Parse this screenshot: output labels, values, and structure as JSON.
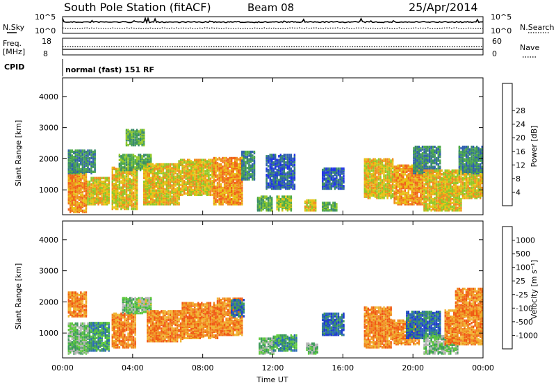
{
  "header": {
    "station": "South Pole Station (fitACF)",
    "beam": "Beam 08",
    "date": "25/Apr/2014"
  },
  "noise_panel": {
    "left_label": "N.Sky",
    "right_label": "N.Search",
    "left_ticks": [
      "10^5",
      "10^0"
    ],
    "right_ticks": [
      "10^5",
      "10^0"
    ]
  },
  "freq_panel": {
    "left_label_1": "Freq.",
    "left_label_2": "[MHz]",
    "right_label": "Nave",
    "left_ticks": [
      "18",
      "8"
    ],
    "right_ticks": [
      "60",
      "0"
    ]
  },
  "cpid": {
    "label": "CPID",
    "program": "normal (fast) 151 RF"
  },
  "colors": {
    "power": [
      "#1e32e6",
      "#2e5eb0",
      "#3a8a6a",
      "#4caa48",
      "#90c828",
      "#e8c214",
      "#f08c1e",
      "#f06418",
      "#e82214"
    ],
    "velocity": [
      "#e81e1e",
      "#f05a14",
      "#f08a1e",
      "#f0b432",
      "#b4b4b4",
      "#5cc83c",
      "#3c9a5a",
      "#2a6ab4",
      "#1e3ccc"
    ]
  },
  "chart_data": [
    {
      "type": "heatmap",
      "panel": "power",
      "ylabel": "Slant Range [km]",
      "ylim": [
        200,
        4600
      ],
      "yticks": [
        1000,
        2000,
        3000,
        4000
      ],
      "xlim": [
        0,
        24
      ],
      "colorbar_label": "Power [dB]",
      "colorbar_ticks": [
        "4",
        "8",
        "12",
        "16",
        "20",
        "24",
        "28"
      ],
      "colorbar_range": [
        0,
        32
      ],
      "blobs": [
        {
          "t0": 0.3,
          "t1": 1.4,
          "r0": 250,
          "r1": 1600,
          "value": 26
        },
        {
          "t0": 0.3,
          "t1": 1.9,
          "r0": 1500,
          "r1": 2250,
          "value": 12
        },
        {
          "t0": 1.4,
          "t1": 2.7,
          "r0": 500,
          "r1": 1350,
          "value": 22
        },
        {
          "t0": 2.8,
          "t1": 4.3,
          "r0": 350,
          "r1": 1700,
          "value": 25
        },
        {
          "t0": 3.2,
          "t1": 5.0,
          "r0": 1600,
          "r1": 2100,
          "value": 14
        },
        {
          "t0": 3.6,
          "t1": 4.6,
          "r0": 2400,
          "r1": 2900,
          "value": 16
        },
        {
          "t0": 4.6,
          "t1": 6.6,
          "r0": 500,
          "r1": 1800,
          "value": 24
        },
        {
          "t0": 6.6,
          "t1": 8.6,
          "r0": 800,
          "r1": 1950,
          "value": 23
        },
        {
          "t0": 8.6,
          "t1": 10.2,
          "r0": 500,
          "r1": 2000,
          "value": 26
        },
        {
          "t0": 10.2,
          "t1": 10.9,
          "r0": 1300,
          "r1": 2200,
          "value": 12
        },
        {
          "t0": 11.1,
          "t1": 11.9,
          "r0": 300,
          "r1": 750,
          "value": 17
        },
        {
          "t0": 11.6,
          "t1": 13.2,
          "r0": 1000,
          "r1": 2100,
          "value": 8
        },
        {
          "t0": 12.2,
          "t1": 13.0,
          "r0": 300,
          "r1": 750,
          "value": 18
        },
        {
          "t0": 13.8,
          "t1": 14.4,
          "r0": 300,
          "r1": 650,
          "value": 25
        },
        {
          "t0": 14.8,
          "t1": 16.0,
          "r0": 1000,
          "r1": 1650,
          "value": 9
        },
        {
          "t0": 14.8,
          "t1": 15.6,
          "r0": 300,
          "r1": 550,
          "value": 14
        },
        {
          "t0": 17.2,
          "t1": 18.9,
          "r0": 700,
          "r1": 1950,
          "value": 25
        },
        {
          "t0": 18.9,
          "t1": 20.6,
          "r0": 500,
          "r1": 1750,
          "value": 26
        },
        {
          "t0": 20.0,
          "t1": 21.6,
          "r0": 1500,
          "r1": 2350,
          "value": 13
        },
        {
          "t0": 20.6,
          "t1": 22.8,
          "r0": 300,
          "r1": 1600,
          "value": 25
        },
        {
          "t0": 22.8,
          "t1": 24.0,
          "r0": 700,
          "r1": 1650,
          "value": 22
        },
        {
          "t0": 22.6,
          "t1": 24.0,
          "r0": 1500,
          "r1": 2350,
          "value": 10
        }
      ]
    },
    {
      "type": "heatmap",
      "panel": "velocity",
      "ylabel": "Slant Range [km]",
      "xlabel": "Time UT",
      "ylim": [
        200,
        4600
      ],
      "yticks": [
        1000,
        2000,
        3000,
        4000
      ],
      "xlim": [
        0,
        24
      ],
      "xticks": [
        "00:00",
        "04:00",
        "08:00",
        "12:00",
        "16:00",
        "20:00",
        "00:00"
      ],
      "colorbar_label": "Velocity [m s⁻¹]",
      "colorbar_ticks": [
        "-1000",
        "-500",
        "-100",
        "-25",
        "25",
        "100",
        "500",
        "1000"
      ],
      "blobs": [
        {
          "t0": 0.3,
          "t1": 1.5,
          "r0": 300,
          "r1": 1300,
          "value": 100
        },
        {
          "t0": 0.3,
          "t1": 1.4,
          "r0": 1500,
          "r1": 2300,
          "value": -200
        },
        {
          "t0": 1.5,
          "t1": 2.7,
          "r0": 400,
          "r1": 1300,
          "value": 150
        },
        {
          "t0": 2.8,
          "t1": 4.2,
          "r0": 500,
          "r1": 1600,
          "value": -200
        },
        {
          "t0": 3.4,
          "t1": 5.0,
          "r0": 1600,
          "r1": 2100,
          "value": 60
        },
        {
          "t0": 4.3,
          "t1": 5.0,
          "r0": 1850,
          "r1": 2050,
          "value": 0
        },
        {
          "t0": 4.8,
          "t1": 6.8,
          "r0": 700,
          "r1": 1700,
          "value": -300
        },
        {
          "t0": 6.8,
          "t1": 8.8,
          "r0": 800,
          "r1": 1950,
          "value": -300
        },
        {
          "t0": 8.8,
          "t1": 10.2,
          "r0": 900,
          "r1": 2100,
          "value": -250
        },
        {
          "t0": 9.6,
          "t1": 10.3,
          "r0": 1500,
          "r1": 2050,
          "value": 600
        },
        {
          "t0": 11.2,
          "t1": 12.0,
          "r0": 300,
          "r1": 800,
          "value": 100
        },
        {
          "t0": 12.0,
          "t1": 13.3,
          "r0": 400,
          "r1": 900,
          "value": 150
        },
        {
          "t0": 13.9,
          "t1": 14.5,
          "r0": 300,
          "r1": 650,
          "value": 80
        },
        {
          "t0": 14.8,
          "t1": 16.0,
          "r0": 900,
          "r1": 1600,
          "value": 700
        },
        {
          "t0": 17.2,
          "t1": 18.8,
          "r0": 500,
          "r1": 1800,
          "value": -250
        },
        {
          "t0": 18.8,
          "t1": 20.4,
          "r0": 600,
          "r1": 1400,
          "value": -300
        },
        {
          "t0": 19.6,
          "t1": 21.6,
          "r0": 800,
          "r1": 1650,
          "value": 800
        },
        {
          "t0": 20.6,
          "t1": 22.6,
          "r0": 300,
          "r1": 900,
          "value": 100
        },
        {
          "t0": 21.8,
          "t1": 24.0,
          "r0": 600,
          "r1": 1700,
          "value": -250
        },
        {
          "t0": 22.4,
          "t1": 24.0,
          "r0": 1500,
          "r1": 2400,
          "value": -300
        }
      ]
    }
  ]
}
